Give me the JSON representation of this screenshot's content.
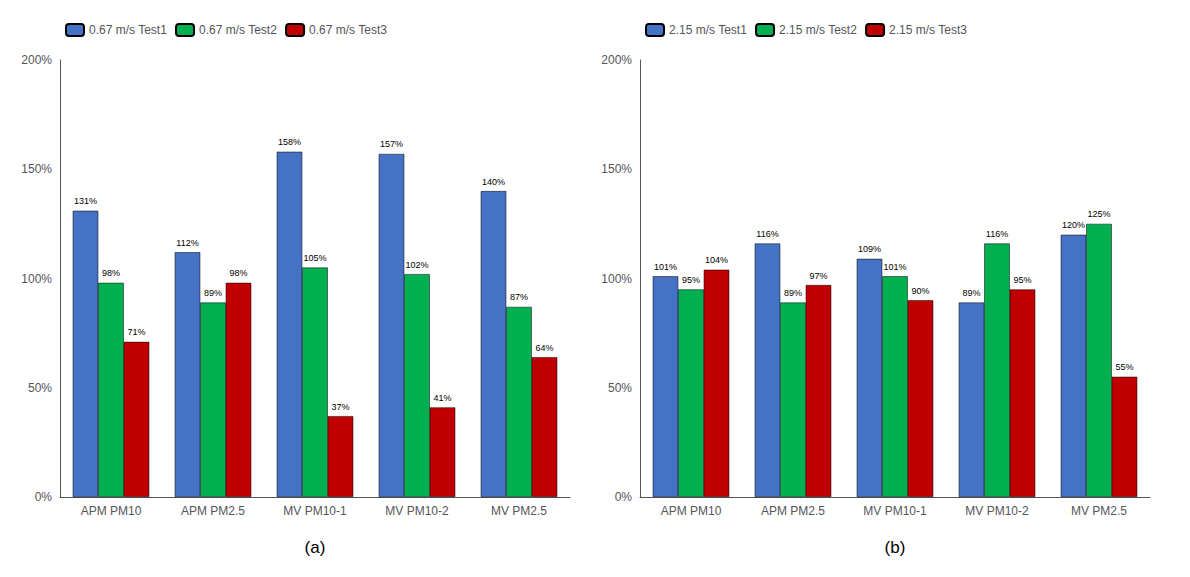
{
  "chart_data": [
    {
      "type": "bar",
      "title": "(a)",
      "categories": [
        "APM PM10",
        "APM PM2.5",
        "MV PM10-1",
        "MV PM10-2",
        "MV PM2.5"
      ],
      "series": [
        {
          "name": "0.67 m/s Test1",
          "color": "#4472C4",
          "values": [
            131,
            112,
            158,
            157,
            140
          ],
          "value_labels": [
            "131%",
            "112%",
            "158%",
            "157%",
            "140%"
          ]
        },
        {
          "name": "0.67 m/s Test2",
          "color": "#00B050",
          "values": [
            98,
            89,
            105,
            102,
            87
          ],
          "value_labels": [
            "98%",
            "89%",
            "105%",
            "102%",
            "87%"
          ]
        },
        {
          "name": "0.67 m/s Test3",
          "color": "#C00000",
          "values": [
            71,
            98,
            37,
            41,
            64
          ],
          "value_labels": [
            "71%",
            "98%",
            "37%",
            "41%",
            "64%"
          ]
        }
      ],
      "ylim": [
        0,
        200
      ],
      "yticks": [
        {
          "value": 0,
          "label": "0%"
        },
        {
          "value": 50,
          "label": "50%"
        },
        {
          "value": 100,
          "label": "100%"
        },
        {
          "value": 150,
          "label": "150%"
        },
        {
          "value": 200,
          "label": "200%"
        }
      ],
      "grid": false,
      "legend": "upper left",
      "data_labels": true
    },
    {
      "type": "bar",
      "title": "(b)",
      "categories": [
        "APM PM10",
        "APM PM2.5",
        "MV PM10-1",
        "MV PM10-2",
        "MV PM2.5"
      ],
      "series": [
        {
          "name": "2.15 m/s Test1",
          "color": "#4472C4",
          "values": [
            101,
            116,
            109,
            89,
            120
          ],
          "value_labels": [
            "101%",
            "116%",
            "109%",
            "89%",
            "120%"
          ]
        },
        {
          "name": "2.15 m/s Test2",
          "color": "#00B050",
          "values": [
            95,
            89,
            101,
            116,
            125
          ],
          "value_labels": [
            "95%",
            "89%",
            "101%",
            "116%",
            "125%"
          ]
        },
        {
          "name": "2.15 m/s Test3",
          "color": "#C00000",
          "values": [
            104,
            97,
            90,
            95,
            55
          ],
          "value_labels": [
            "104%",
            "97%",
            "90%",
            "95%",
            "55%"
          ]
        }
      ],
      "ylim": [
        0,
        200
      ],
      "yticks": [
        {
          "value": 0,
          "label": "0%"
        },
        {
          "value": 50,
          "label": "50%"
        },
        {
          "value": 100,
          "label": "100%"
        },
        {
          "value": 150,
          "label": "150%"
        },
        {
          "value": 200,
          "label": "200%"
        }
      ],
      "grid": false,
      "legend": "upper left",
      "data_labels": true
    }
  ]
}
